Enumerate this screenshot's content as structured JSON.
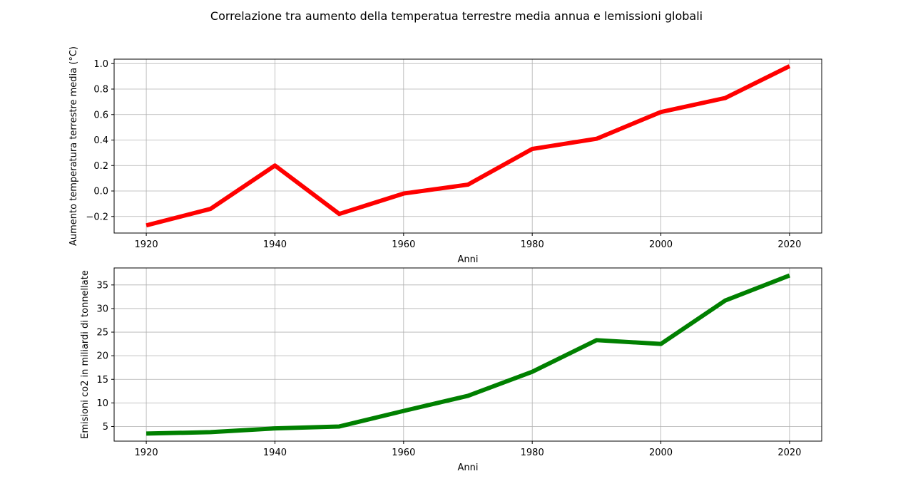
{
  "figure": {
    "title": "Correlazione tra aumento della temperatua terrestre media annua e lemissioni globali"
  },
  "chart_data": [
    {
      "type": "line",
      "xlabel": "Anni",
      "ylabel": "Aumento temperatura terrestre media (°C)",
      "x": [
        1920,
        1930,
        1940,
        1950,
        1960,
        1970,
        1980,
        1990,
        2000,
        2010,
        2020
      ],
      "series": [
        {
          "values": [
            -0.27,
            -0.14,
            0.2,
            -0.18,
            -0.02,
            0.05,
            0.33,
            0.41,
            0.62,
            0.73,
            0.98
          ],
          "color": "#ff0000"
        }
      ],
      "xlim": [
        1915,
        2025
      ],
      "ylim": [
        -0.33,
        1.035
      ],
      "xticks": [
        1920,
        1940,
        1960,
        1980,
        2000,
        2020
      ],
      "xtick_labels": [
        "1920",
        "1940",
        "1960",
        "1980",
        "2000",
        "2020"
      ],
      "yticks": [
        -0.2,
        0.0,
        0.2,
        0.4,
        0.6,
        0.8,
        1.0
      ],
      "ytick_labels": [
        "−0.2",
        "0.0",
        "0.2",
        "0.4",
        "0.6",
        "0.8",
        "1.0"
      ],
      "grid": true
    },
    {
      "type": "line",
      "xlabel": "Anni",
      "ylabel": "Emisioni co2 in miliardi di tonnellate",
      "x": [
        1920,
        1930,
        1940,
        1950,
        1960,
        1970,
        1980,
        1990,
        2000,
        2010,
        2020
      ],
      "series": [
        {
          "values": [
            3.5,
            3.8,
            4.6,
            5.0,
            8.3,
            11.5,
            16.6,
            23.3,
            22.5,
            31.7,
            37.0
          ],
          "color": "#008000"
        }
      ],
      "xlim": [
        1915,
        2025
      ],
      "ylim": [
        1.9,
        38.6
      ],
      "xticks": [
        1920,
        1940,
        1960,
        1980,
        2000,
        2020
      ],
      "xtick_labels": [
        "1920",
        "1940",
        "1960",
        "1980",
        "2000",
        "2020"
      ],
      "yticks": [
        5,
        10,
        15,
        20,
        25,
        30,
        35
      ],
      "ytick_labels": [
        "5",
        "10",
        "15",
        "20",
        "25",
        "30",
        "35"
      ],
      "grid": true
    }
  ]
}
